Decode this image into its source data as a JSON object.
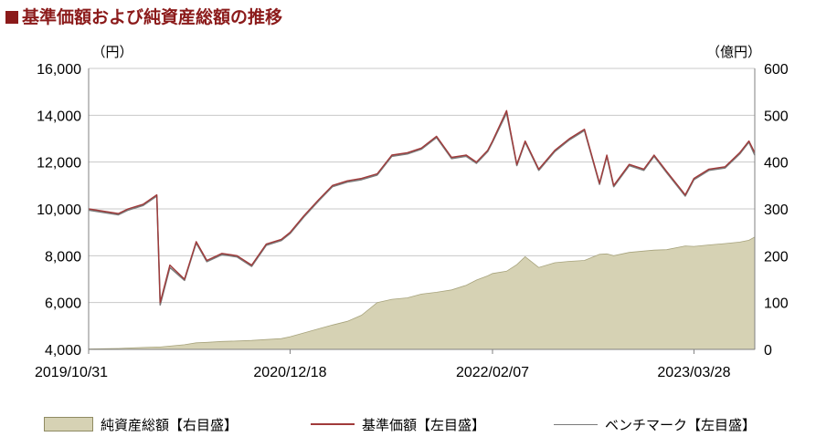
{
  "title": "基準価額および純資産総額の推移",
  "chart_data": {
    "type": "line",
    "left_axis": {
      "unit": "（円）",
      "ylim": [
        4000,
        16000
      ],
      "ticks": [
        "4,000",
        "6,000",
        "8,000",
        "10,000",
        "12,000",
        "14,000",
        "16,000"
      ]
    },
    "right_axis": {
      "unit": "（億円）",
      "ylim": [
        0,
        600
      ],
      "ticks": [
        "0",
        "100",
        "200",
        "300",
        "400",
        "500",
        "600"
      ]
    },
    "x_ticks": [
      "2019/10/31",
      "2020/12/18",
      "2022/02/07",
      "2023/03/28"
    ],
    "grid": true,
    "legend_position": "bottom",
    "x": [
      "2019/10/31",
      "2019/12/31",
      "2020/01/20",
      "2020/02/20",
      "2020/03/19",
      "2020/03/26",
      "2020/04/15",
      "2020/05/15",
      "2020/06/08",
      "2020/06/30",
      "2020/07/31",
      "2020/08/31",
      "2020/09/30",
      "2020/10/30",
      "2020/11/30",
      "2020/12/18",
      "2021/01/15",
      "2021/02/15",
      "2021/03/15",
      "2021/04/15",
      "2021/05/14",
      "2021/06/15",
      "2021/07/15",
      "2021/08/16",
      "2021/09/14",
      "2021/10/15",
      "2021/11/15",
      "2021/12/15",
      "2022/01/05",
      "2022/01/28",
      "2022/02/07",
      "2022/03/08",
      "2022/03/29",
      "2022/04/15",
      "2022/05/13",
      "2022/06/15",
      "2022/07/15",
      "2022/08/15",
      "2022/09/15",
      "2022/09/30",
      "2022/10/14",
      "2022/11/15",
      "2022/12/15",
      "2023/01/05",
      "2023/01/31",
      "2023/03/10",
      "2023/03/28",
      "2023/04/28",
      "2023/05/31",
      "2023/06/30",
      "2023/07/19",
      "2023/07/31"
    ],
    "series": [
      {
        "name": "純資産総額【右目盛】",
        "type": "area",
        "axis": "right",
        "color": "#d6d2b4",
        "values": [
          1,
          2,
          3,
          4,
          5,
          5,
          7,
          10,
          14,
          15,
          17,
          18,
          19,
          21,
          23,
          27,
          35,
          44,
          52,
          60,
          73,
          100,
          107,
          110,
          118,
          122,
          127,
          137,
          148,
          157,
          162,
          167,
          181,
          198,
          175,
          185,
          188,
          190,
          203,
          204,
          200,
          207,
          210,
          212,
          213,
          221,
          220,
          223,
          226,
          229,
          233,
          240
        ]
      },
      {
        "name": "基準価額【左目盛】",
        "type": "line",
        "axis": "left",
        "color": "#a03a3a",
        "values": [
          10000,
          9800,
          10000,
          10200,
          10600,
          6000,
          7600,
          7000,
          8600,
          7800,
          8100,
          8000,
          7600,
          8500,
          8700,
          9000,
          9700,
          10400,
          11000,
          11200,
          11300,
          11500,
          12300,
          12400,
          12600,
          13100,
          12200,
          12300,
          12000,
          12500,
          12900,
          14200,
          11900,
          12900,
          11700,
          12500,
          13000,
          13400,
          11100,
          12300,
          11000,
          11900,
          11700,
          12300,
          11600,
          10600,
          11300,
          11700,
          11800,
          12400,
          12900,
          12400
        ]
      },
      {
        "name": "ベンチマーク【左目盛】",
        "type": "line",
        "axis": "left",
        "color": "#7a7a7a",
        "values": [
          9950,
          9750,
          9950,
          10150,
          10550,
          5900,
          7500,
          6950,
          8550,
          7750,
          8050,
          7950,
          7550,
          8450,
          8650,
          8950,
          9650,
          10350,
          10950,
          11150,
          11250,
          11450,
          12250,
          12350,
          12550,
          13050,
          12150,
          12250,
          11950,
          12450,
          12850,
          14100,
          11850,
          12850,
          11650,
          12450,
          12950,
          13350,
          11050,
          12250,
          10950,
          11850,
          11650,
          12250,
          11550,
          10550,
          11250,
          11650,
          11750,
          12350,
          12850,
          12300
        ]
      }
    ]
  },
  "legend": [
    {
      "label": "純資産総額【右目盛】"
    },
    {
      "label": "基準価額【左目盛】"
    },
    {
      "label": "ベンチマーク【左目盛】"
    }
  ]
}
